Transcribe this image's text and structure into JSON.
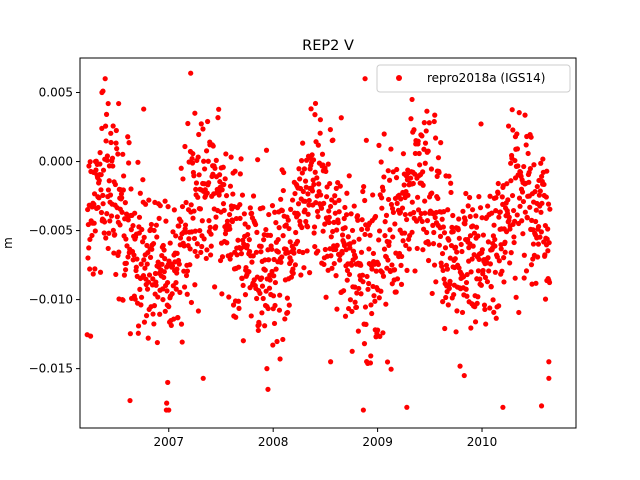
{
  "chart_data": {
    "type": "scatter",
    "title": "REP2 V",
    "xlabel": "",
    "ylabel": "m",
    "xlim": [
      2006.15,
      2010.9
    ],
    "ylim": [
      -0.0193,
      0.0075
    ],
    "xticks": [
      {
        "value": 2007,
        "label": "2007"
      },
      {
        "value": 2008,
        "label": "2008"
      },
      {
        "value": 2009,
        "label": "2009"
      },
      {
        "value": 2010,
        "label": "2010"
      }
    ],
    "yticks": [
      {
        "value": 0.005,
        "label": "0.005"
      },
      {
        "value": 0.0,
        "label": "0.000"
      },
      {
        "value": -0.005,
        "label": "−0.005"
      },
      {
        "value": -0.01,
        "label": "−0.010"
      },
      {
        "value": -0.015,
        "label": "−0.015"
      }
    ],
    "grid": false,
    "legend": {
      "position": "top-right",
      "entries": [
        "repro2018a (IGS14)"
      ]
    },
    "series": [
      {
        "name": "repro2018a (IGS14)",
        "color": "#ff0000",
        "sampling": {
          "x_start": 2006.22,
          "x_end": 2010.65,
          "count": 1400
        },
        "model": {
          "mean": -0.0052,
          "annual_amplitude": 0.0028,
          "annual_peak": 0.4,
          "semiannual_amplitude": 0.0008,
          "noise_sd": 0.0029,
          "seed": 12345
        },
        "notable_points": [
          {
            "x": 2006.36,
            "y": 0.005
          },
          {
            "x": 2006.37,
            "y": 0.0051
          },
          {
            "x": 2006.42,
            "y": 0.0042
          },
          {
            "x": 2006.52,
            "y": 0.0042
          },
          {
            "x": 2006.76,
            "y": 0.0038
          },
          {
            "x": 2007.21,
            "y": 0.0064
          },
          {
            "x": 2007.25,
            "y": 0.0035
          },
          {
            "x": 2008.4,
            "y": 0.0034
          },
          {
            "x": 2008.88,
            "y": 0.006
          },
          {
            "x": 2009.33,
            "y": 0.0045
          },
          {
            "x": 2006.98,
            "y": -0.0175
          },
          {
            "x": 2007.0,
            "y": -0.018
          },
          {
            "x": 2006.99,
            "y": -0.016
          },
          {
            "x": 2007.33,
            "y": -0.0157
          },
          {
            "x": 2007.95,
            "y": -0.0165
          },
          {
            "x": 2007.94,
            "y": -0.015
          },
          {
            "x": 2008.55,
            "y": -0.0145
          },
          {
            "x": 2009.28,
            "y": -0.0178
          },
          {
            "x": 2009.83,
            "y": -0.0155
          },
          {
            "x": 2010.2,
            "y": -0.0178
          },
          {
            "x": 2010.57,
            "y": -0.0177
          },
          {
            "x": 2010.64,
            "y": -0.0157
          },
          {
            "x": 2010.64,
            "y": -0.0145
          },
          {
            "x": 2010.62,
            "y": -0.0007
          },
          {
            "x": 2010.32,
            "y": 0.0018
          }
        ]
      }
    ]
  }
}
